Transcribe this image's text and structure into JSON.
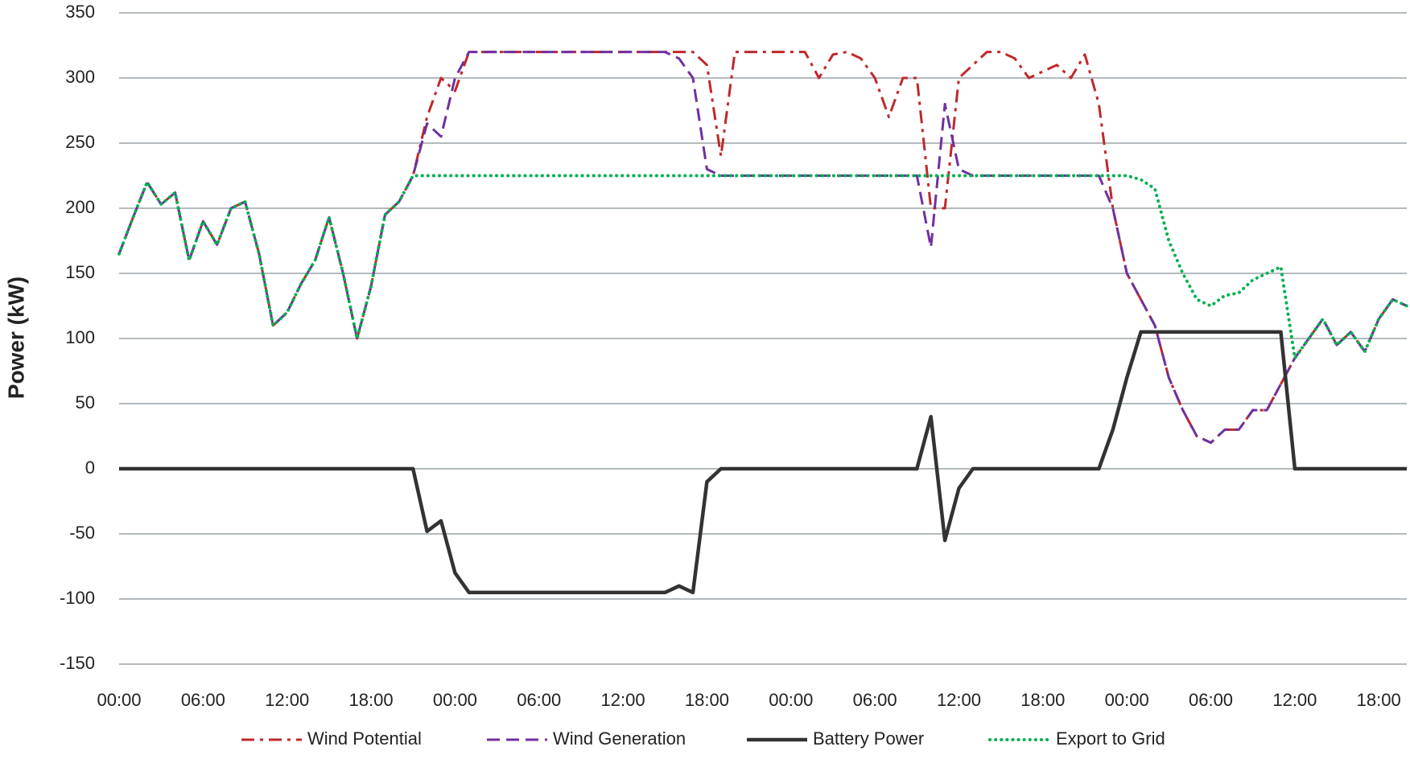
{
  "chart_data": {
    "type": "line",
    "y_label": "Power (kW)",
    "categories": [
      "00:00",
      null,
      null,
      null,
      null,
      null,
      "06:00",
      null,
      null,
      null,
      null,
      null,
      "12:00",
      null,
      null,
      null,
      null,
      null,
      "18:00",
      null,
      null,
      null,
      null,
      null,
      "00:00",
      null,
      null,
      null,
      null,
      null,
      "06:00",
      null,
      null,
      null,
      null,
      null,
      "12:00",
      null,
      null,
      null,
      null,
      null,
      "18:00",
      null,
      null,
      null,
      null,
      null,
      "00:00",
      null,
      null,
      null,
      null,
      null,
      "06:00",
      null,
      null,
      null,
      null,
      null,
      "12:00",
      null,
      null,
      null,
      null,
      null,
      "18:00",
      null,
      null,
      null,
      null,
      null,
      "00:00",
      null,
      null,
      null,
      null,
      null,
      "06:00",
      null,
      null,
      null,
      null,
      null,
      "12:00",
      null,
      null,
      null,
      null,
      null,
      "18:00",
      null,
      null
    ],
    "series": [
      {
        "name": "Wind Potential",
        "color": "#c0282a",
        "dash": "dashdot",
        "values": [
          165,
          193,
          220,
          203,
          212,
          160,
          190,
          172,
          200,
          205,
          165,
          110,
          120,
          142,
          160,
          193,
          150,
          100,
          140,
          195,
          205,
          225,
          270,
          300,
          290,
          320,
          320,
          320,
          320,
          320,
          320,
          320,
          320,
          320,
          320,
          320,
          320,
          320,
          320,
          320,
          320,
          320,
          310,
          240,
          320,
          320,
          320,
          320,
          320,
          320,
          300,
          318,
          320,
          315,
          300,
          270,
          300,
          300,
          200,
          200,
          300,
          310,
          320,
          320,
          315,
          300,
          305,
          310,
          300,
          318,
          280,
          200,
          150,
          130,
          110,
          70,
          45,
          25,
          20,
          30,
          30,
          45,
          45,
          65,
          85,
          100,
          115,
          95,
          105,
          90,
          115,
          130,
          125
        ]
      },
      {
        "name": "Wind Generation",
        "color": "#7030a0",
        "dash": "dashed",
        "values": [
          165,
          193,
          220,
          203,
          212,
          160,
          190,
          172,
          200,
          205,
          165,
          110,
          120,
          142,
          160,
          193,
          150,
          100,
          140,
          195,
          205,
          225,
          265,
          255,
          300,
          320,
          320,
          320,
          320,
          320,
          320,
          320,
          320,
          320,
          320,
          320,
          320,
          320,
          320,
          320,
          315,
          300,
          230,
          225,
          225,
          225,
          225,
          225,
          225,
          225,
          225,
          225,
          225,
          225,
          225,
          225,
          225,
          225,
          170,
          280,
          230,
          225,
          225,
          225,
          225,
          225,
          225,
          225,
          225,
          225,
          225,
          200,
          150,
          130,
          110,
          70,
          45,
          25,
          20,
          30,
          30,
          45,
          45,
          65,
          85,
          100,
          115,
          95,
          105,
          90,
          115,
          130,
          125
        ]
      },
      {
        "name": "Battery Power",
        "color": "#333333",
        "dash": "solid",
        "values": [
          0,
          0,
          0,
          0,
          0,
          0,
          0,
          0,
          0,
          0,
          0,
          0,
          0,
          0,
          0,
          0,
          0,
          0,
          0,
          0,
          0,
          0,
          -48,
          -40,
          -80,
          -95,
          -95,
          -95,
          -95,
          -95,
          -95,
          -95,
          -95,
          -95,
          -95,
          -95,
          -95,
          -95,
          -95,
          -95,
          -90,
          -95,
          -10,
          0,
          0,
          0,
          0,
          0,
          0,
          0,
          0,
          0,
          0,
          0,
          0,
          0,
          0,
          0,
          40,
          -55,
          -15,
          0,
          0,
          0,
          0,
          0,
          0,
          0,
          0,
          0,
          0,
          30,
          70,
          105,
          105,
          105,
          105,
          105,
          105,
          105,
          105,
          105,
          105,
          105,
          0,
          0,
          0,
          0,
          0,
          0,
          0,
          0,
          0
        ]
      },
      {
        "name": "Export to Grid",
        "color": "#00b050",
        "dash": "dotted",
        "values": [
          165,
          193,
          220,
          203,
          212,
          160,
          190,
          172,
          200,
          205,
          165,
          110,
          120,
          142,
          160,
          193,
          150,
          100,
          140,
          195,
          205,
          225,
          225,
          225,
          225,
          225,
          225,
          225,
          225,
          225,
          225,
          225,
          225,
          225,
          225,
          225,
          225,
          225,
          225,
          225,
          225,
          225,
          225,
          225,
          225,
          225,
          225,
          225,
          225,
          225,
          225,
          225,
          225,
          225,
          225,
          225,
          225,
          225,
          225,
          225,
          225,
          225,
          225,
          225,
          225,
          225,
          225,
          225,
          225,
          225,
          225,
          225,
          225,
          222,
          215,
          175,
          150,
          130,
          125,
          133,
          135,
          145,
          150,
          155,
          85,
          100,
          115,
          95,
          105,
          90,
          115,
          130,
          125
        ]
      }
    ],
    "ylim": [
      -150,
      350
    ],
    "yticks": [
      -150,
      -100,
      -50,
      0,
      50,
      100,
      150,
      200,
      250,
      300,
      350
    ],
    "grid": true,
    "legend": "bottom"
  }
}
